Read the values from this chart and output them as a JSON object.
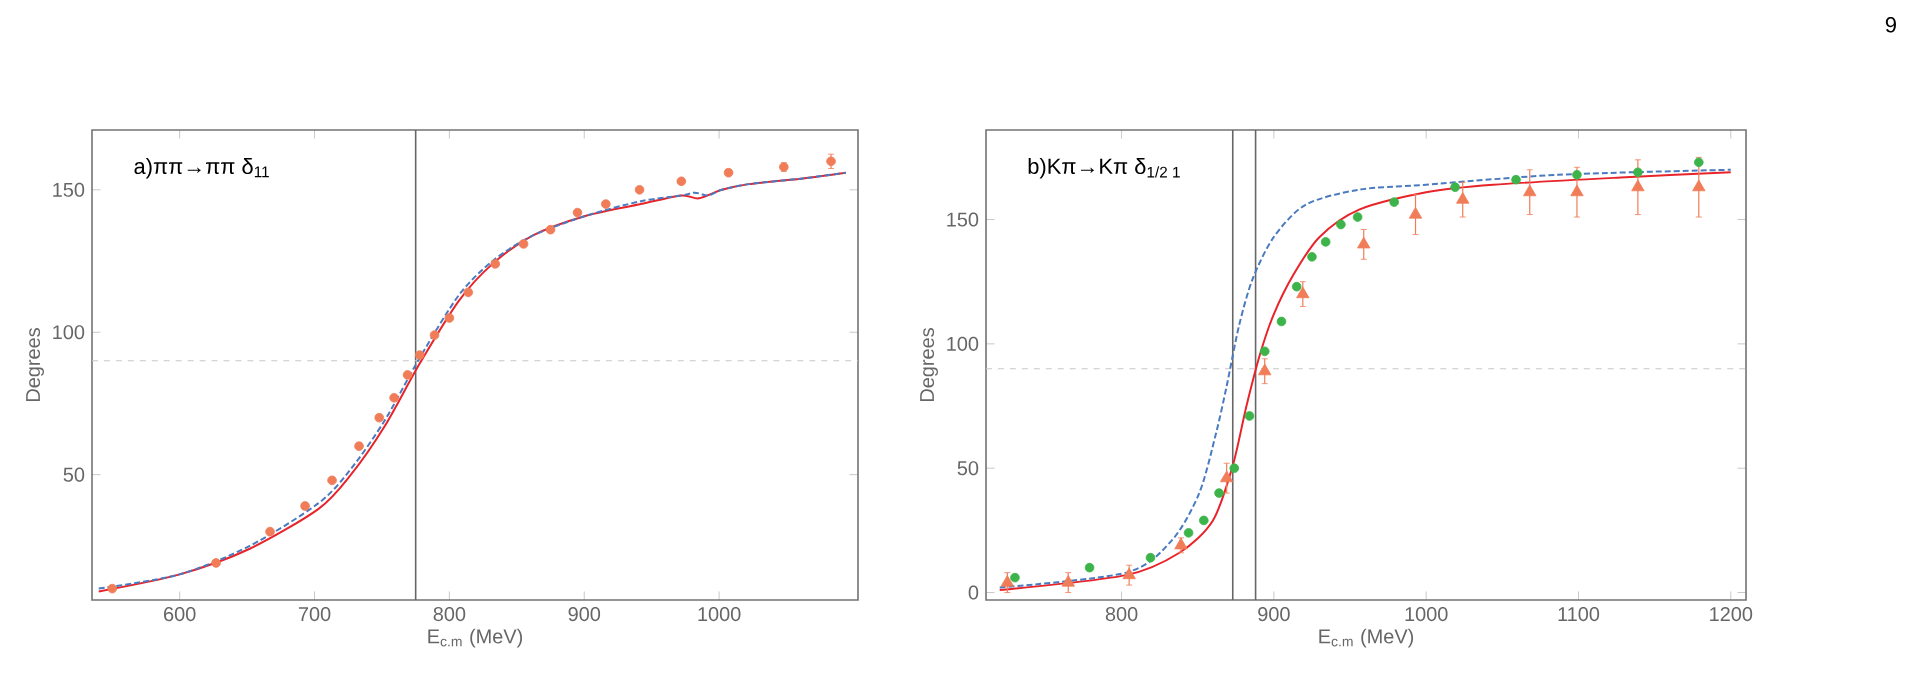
{
  "chart_data": [
    {
      "type": "line",
      "title": "a)ππ→ππ δ$_{11}$",
      "xlabel": "E$_{c.m}$ (MeV)",
      "ylabel": "Degrees",
      "xlim": [
        535,
        1103
      ],
      "ylim": [
        6,
        171
      ],
      "xticks": [
        600,
        700,
        800,
        900,
        1000
      ],
      "yticks": [
        50,
        100,
        150
      ],
      "grid": false,
      "ref_lines": [
        {
          "axis": "x",
          "value": 775,
          "color": "#666666",
          "line_style": "solid"
        },
        {
          "axis": "y",
          "value": 90,
          "color": "#c8c8c8",
          "line_style": "dashed"
        }
      ],
      "series": [
        {
          "color": "#e8232a",
          "line_style": "solid",
          "x": [
            540,
            600,
            652,
            703,
            727,
            752,
            778,
            807,
            832,
            862,
            902,
            942,
            972,
            985,
            1002,
            1022,
            1062,
            1094
          ],
          "values": [
            9,
            15,
            24,
            38,
            50,
            67,
            89,
            111,
            124,
            134,
            141,
            145,
            148,
            147,
            150,
            152,
            154,
            156
          ]
        },
        {
          "color": "#4a7abf",
          "line_style": "dashed",
          "x": [
            540,
            600,
            652,
            703,
            727,
            752,
            778,
            807,
            832,
            862,
            902,
            942,
            972,
            982,
            992,
            1002,
            1022,
            1062,
            1094
          ],
          "values": [
            10,
            15,
            25,
            40,
            52,
            69,
            91,
            113,
            125,
            134,
            141,
            146,
            148,
            149,
            148,
            150,
            152,
            154,
            156
          ]
        },
        {
          "type": "scatter",
          "color": "#f07c58",
          "marker": "circle",
          "x": [
            550,
            627,
            667,
            693,
            713,
            733,
            748,
            759,
            769,
            778,
            789,
            800,
            814,
            834,
            855,
            875,
            895,
            916,
            941,
            972,
            1007,
            1048,
            1083
          ],
          "values": [
            10,
            19,
            30,
            39,
            48,
            60,
            70,
            77,
            85,
            92,
            99,
            105,
            114,
            124,
            131,
            136,
            142,
            145,
            150,
            153,
            156,
            158,
            160
          ],
          "errors": [
            null,
            null,
            null,
            null,
            null,
            null,
            null,
            null,
            null,
            null,
            null,
            null,
            null,
            null,
            null,
            null,
            null,
            null,
            null,
            null,
            null,
            1.5,
            2.5
          ]
        }
      ]
    },
    {
      "type": "line",
      "title": "b)Kπ→Kπ δ$_{1/2 1}$",
      "xlabel": "E$_{c.m}$ (MeV)",
      "ylabel": "Degrees",
      "xlim": [
        711,
        1210
      ],
      "ylim": [
        -3,
        186
      ],
      "xticks": [
        800,
        900,
        1000,
        1100,
        1200
      ],
      "yticks": [
        0,
        50,
        100,
        150
      ],
      "grid": false,
      "annotations": [
        "9"
      ],
      "ref_lines": [
        {
          "axis": "x",
          "value": 873,
          "color": "#666666",
          "line_style": "solid"
        },
        {
          "axis": "x",
          "value": 888,
          "color": "#666666",
          "line_style": "solid"
        },
        {
          "axis": "y",
          "value": 90,
          "color": "#c8c8c8",
          "line_style": "dashed"
        }
      ],
      "series": [
        {
          "color": "#e8232a",
          "line_style": "solid",
          "x": [
            720,
            803,
            838,
            860,
            873,
            882,
            891,
            900,
            913,
            930,
            956,
            1000,
            1044,
            1131,
            1200
          ],
          "values": [
            1,
            7,
            16,
            29,
            51,
            75,
            96,
            112,
            128,
            143,
            154,
            161,
            164,
            167,
            169
          ]
        },
        {
          "color": "#4a7abf",
          "line_style": "dashed",
          "x": [
            720,
            803,
            833,
            851,
            862,
            869,
            877,
            886,
            900,
            921,
            956,
            1000,
            1087,
            1200
          ],
          "values": [
            2,
            8,
            21,
            40,
            64,
            83,
            107,
            126,
            143,
            156,
            162,
            164,
            168,
            170
          ]
        },
        {
          "type": "scatter",
          "color": "#f07c58",
          "marker": "triangle",
          "x": [
            725,
            765,
            805,
            839,
            869,
            894,
            919,
            959,
            993,
            1024,
            1068,
            1099,
            1139,
            1179
          ],
          "values": [
            4,
            4,
            7,
            19,
            46,
            89,
            120,
            140,
            152,
            158,
            161,
            161,
            163,
            163
          ],
          "errors": [
            4,
            4,
            4,
            3,
            6,
            5,
            5,
            6,
            8,
            7,
            9,
            10,
            11,
            12
          ]
        },
        {
          "type": "scatter",
          "color": "#3cb44a",
          "marker": "circle",
          "x": [
            730,
            779,
            819,
            844,
            854,
            864,
            874,
            884,
            894,
            905,
            915,
            925,
            934,
            944,
            955,
            979,
            1019,
            1059,
            1099,
            1139,
            1179
          ],
          "values": [
            6,
            10,
            14,
            24,
            29,
            40,
            50,
            71,
            97,
            109,
            123,
            135,
            141,
            148,
            151,
            157,
            163,
            166,
            168,
            169,
            173
          ]
        }
      ]
    }
  ]
}
